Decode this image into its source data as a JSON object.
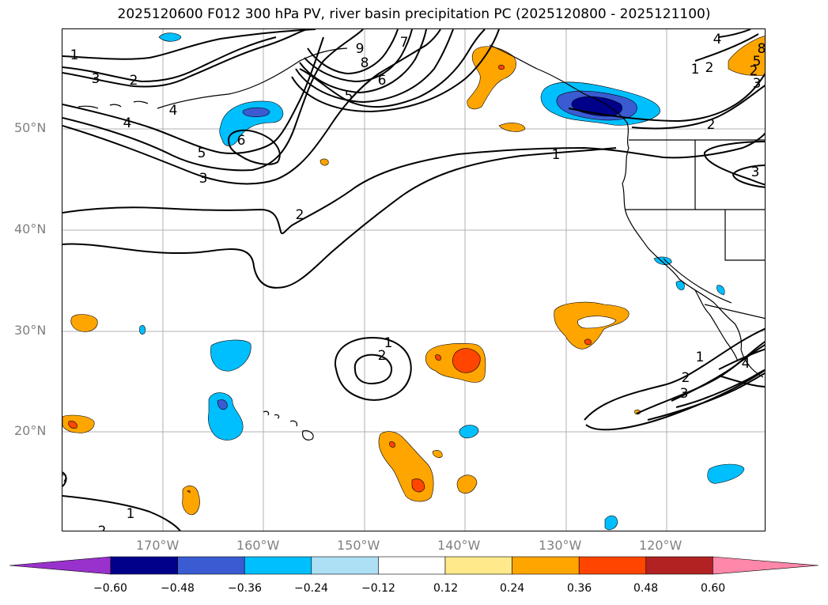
{
  "title": "2025120600 F012 300 hPa PV, river basin precipitation PC (2025120800 - 2025121100)",
  "lat_labels": [
    "50°N",
    "40°N",
    "30°N",
    "20°N"
  ],
  "lon_labels": [
    "170°W",
    "160°W",
    "150°W",
    "140°W",
    "130°W",
    "120°W"
  ],
  "contour_labels": [
    "1",
    "3",
    "2",
    "4",
    "4",
    "5",
    "3",
    "6",
    "9",
    "8",
    "7",
    "6",
    "5",
    "2",
    "1",
    "2",
    "1",
    "2",
    "3",
    "4",
    "5",
    "8",
    "2",
    "3",
    "2",
    "1",
    "2",
    "3",
    "1",
    "4",
    "1",
    "2"
  ],
  "colorbar": {
    "ticks": [
      "−0.60",
      "−0.48",
      "−0.36",
      "−0.24",
      "−0.12",
      "0.12",
      "0.24",
      "0.36",
      "0.48",
      "0.60"
    ],
    "colors": [
      "#9932CC",
      "#00008B",
      "#3A5BD1",
      "#00BFFF",
      "#ADE0F5",
      "#FFFFFF",
      "#FFE98A",
      "#FFA500",
      "#FF4500",
      "#B22222",
      "#FF88AA"
    ]
  },
  "legend_colors": {
    "neg_strong": "#00008B",
    "neg_mid": "#3A5BD1",
    "neg": "#00BFFF",
    "neg_weak": "#ADE0F5",
    "pos": "#FFA500",
    "pos_mid": "#FF4500",
    "pos_strong": "#B22222"
  }
}
